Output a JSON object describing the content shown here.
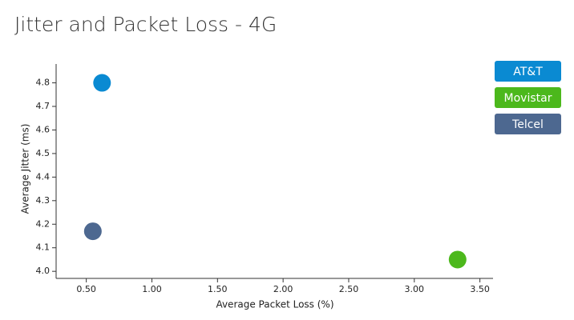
{
  "chart_data": {
    "type": "scatter",
    "title": "Jitter and Packet Loss - 4G",
    "x_label": "Average Packet Loss (%)",
    "y_label": "Average Jitter (ms)",
    "series": [
      {
        "name": "AT&T",
        "color": "#0a8ad2",
        "x": [
          0.62
        ],
        "values": [
          4.8
        ]
      },
      {
        "name": "Movistar",
        "color": "#4cb81c",
        "x": [
          3.33
        ],
        "values": [
          4.05
        ]
      },
      {
        "name": "Telcel",
        "color": "#4d6890",
        "x": [
          0.55
        ],
        "values": [
          4.17
        ]
      }
    ],
    "xlim": [
      0.27,
      3.6
    ],
    "xticks": [
      {
        "value": 0.5,
        "label": "0.50"
      },
      {
        "value": 1,
        "label": "1.00"
      },
      {
        "value": 1.5,
        "label": "1.50"
      },
      {
        "value": 2,
        "label": "2.00"
      },
      {
        "value": 2.5,
        "label": "2.50"
      },
      {
        "value": 3,
        "label": "3.00"
      },
      {
        "value": 3.5,
        "label": "3.50"
      }
    ],
    "ylim": [
      3.97,
      4.88
    ],
    "yticks": [
      {
        "value": 4,
        "label": "4.0"
      },
      4.1,
      4.2,
      4.3,
      4.4,
      4.5,
      4.6,
      4.7,
      4.8
    ],
    "legend": "top-right"
  }
}
